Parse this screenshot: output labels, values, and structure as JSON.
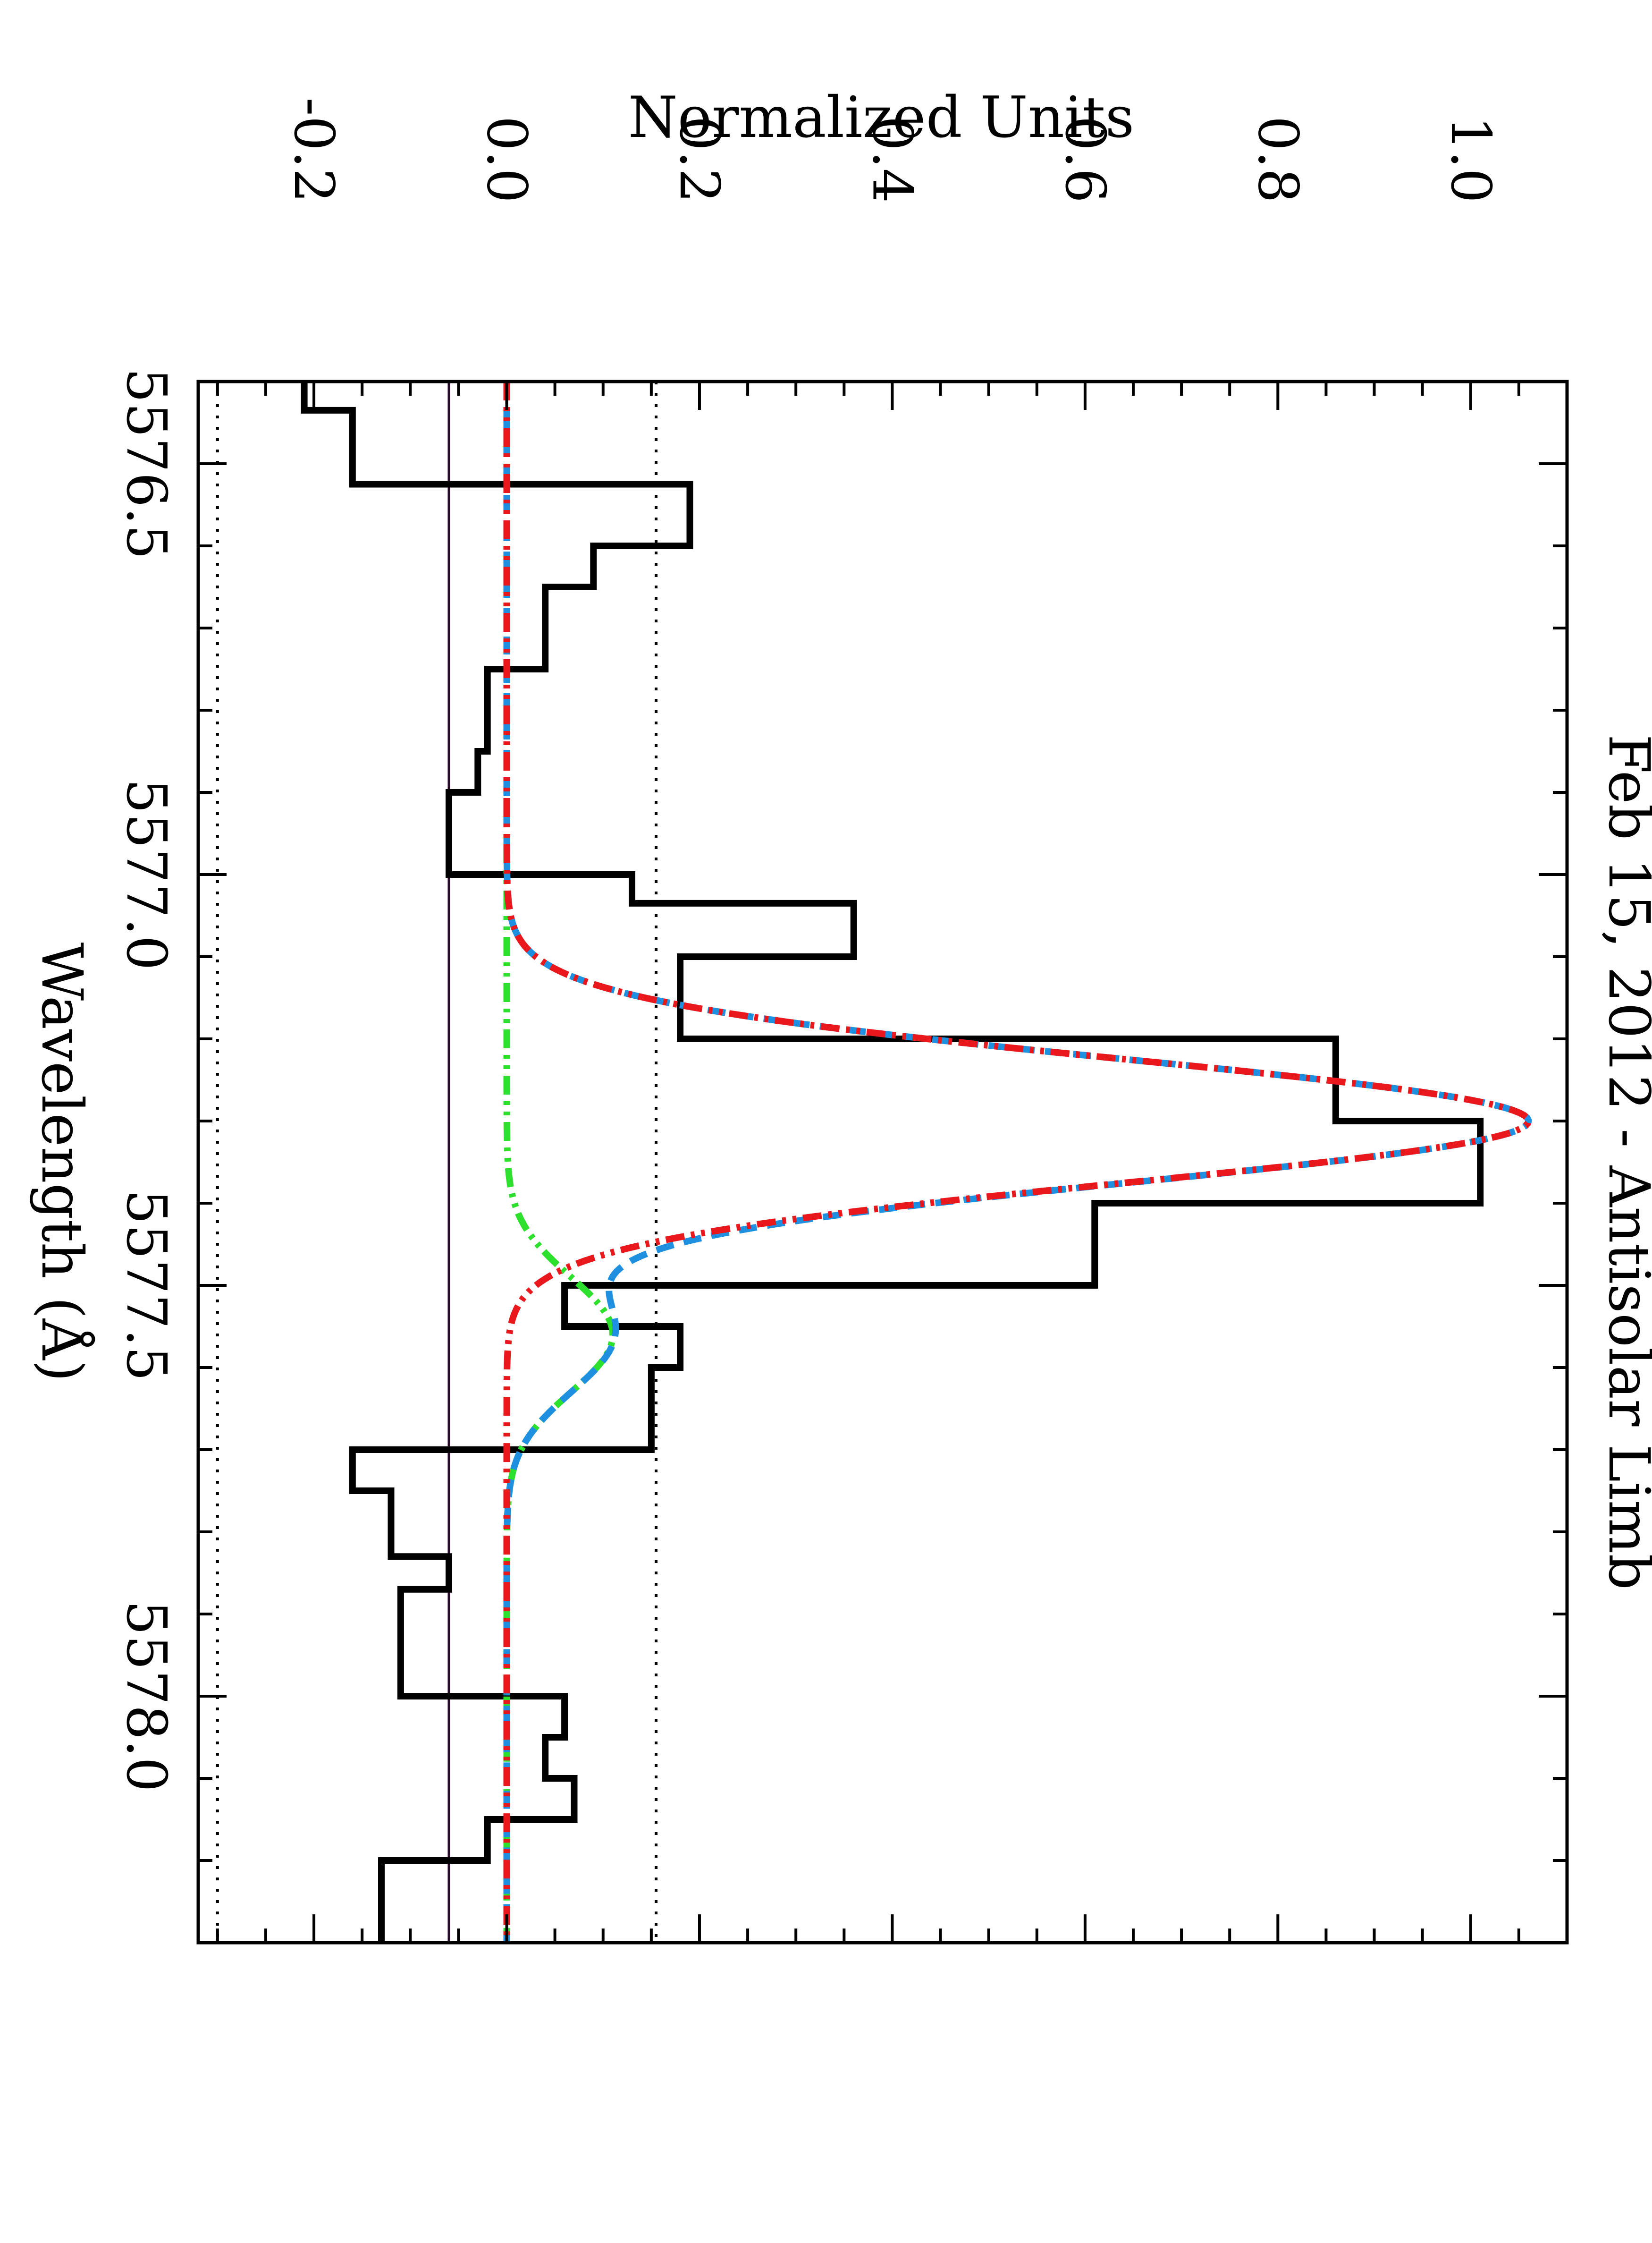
{
  "chart_data": {
    "type": "line",
    "orientation": "rotated 90 degrees clockwise (wavelength runs down the page, intensity runs right)",
    "title": "Feb 15, 2012 - Antisolar Limb",
    "xlabel": "Wavelength (Å)",
    "ylabel": "Normalized Units",
    "xlim": [
      5576.4,
      5578.3
    ],
    "ylim": [
      -0.32,
      1.1
    ],
    "x_ticks": [
      5576.5,
      5577.0,
      5577.5,
      5578.0
    ],
    "x_tick_labels": [
      "5576.5",
      "5577.0",
      "5577.5",
      "5578.0"
    ],
    "y_ticks": [
      -0.2,
      0.0,
      0.2,
      0.4,
      0.6,
      0.8,
      1.0
    ],
    "y_tick_labels": [
      "-0.2",
      "0.0",
      "0.2",
      "0.4",
      "0.6",
      "0.8",
      "1.0"
    ],
    "grid": false,
    "legend": "none",
    "histogram": {
      "color": "#000000",
      "bin_edges": [
        5576.4,
        5576.435,
        5576.525,
        5576.6,
        5576.65,
        5576.75,
        5576.85,
        5576.9,
        5577.0,
        5577.035,
        5577.1,
        5577.2,
        5577.3,
        5577.4,
        5577.5,
        5577.55,
        5577.6,
        5577.7,
        5577.75,
        5577.83,
        5577.87,
        5578.0,
        5578.05,
        5578.1,
        5578.15,
        5578.2,
        5578.3
      ],
      "values": [
        -0.21,
        -0.16,
        0.19,
        0.09,
        0.04,
        -0.02,
        -0.03,
        -0.06,
        0.13,
        0.36,
        0.18,
        0.86,
        1.01,
        0.61,
        0.06,
        0.18,
        0.15,
        -0.16,
        -0.12,
        -0.06,
        -0.11,
        0.06,
        0.04,
        0.07,
        -0.02,
        -0.13
      ]
    },
    "series": [
      {
        "style": "dash-dot-dot",
        "color": "#e8181c",
        "peak_x": 5577.3,
        "peak_y": 1.06,
        "sigma": 0.075,
        "baseline": 0.0
      },
      {
        "style": "dashed",
        "color": "#1f8fe0",
        "components": [
          {
            "peak_x": 5577.3,
            "peak_y": 1.06,
            "sigma": 0.075
          },
          {
            "peak_x": 5577.56,
            "peak_y": 0.11,
            "sigma": 0.07
          }
        ],
        "baseline": 0.0
      },
      {
        "style": "dash-dot-dot",
        "color": "#2ee02e",
        "peak_x": 5577.56,
        "peak_y": 0.11,
        "sigma": 0.07,
        "baseline": 0.0
      }
    ],
    "reference_lines": [
      {
        "y": -0.06,
        "style": "solid",
        "color": "#2a0a2a"
      },
      {
        "y": 0.155,
        "style": "dotted",
        "color": "#000000"
      },
      {
        "y": -0.3,
        "style": "dotted",
        "color": "#000000"
      }
    ]
  }
}
